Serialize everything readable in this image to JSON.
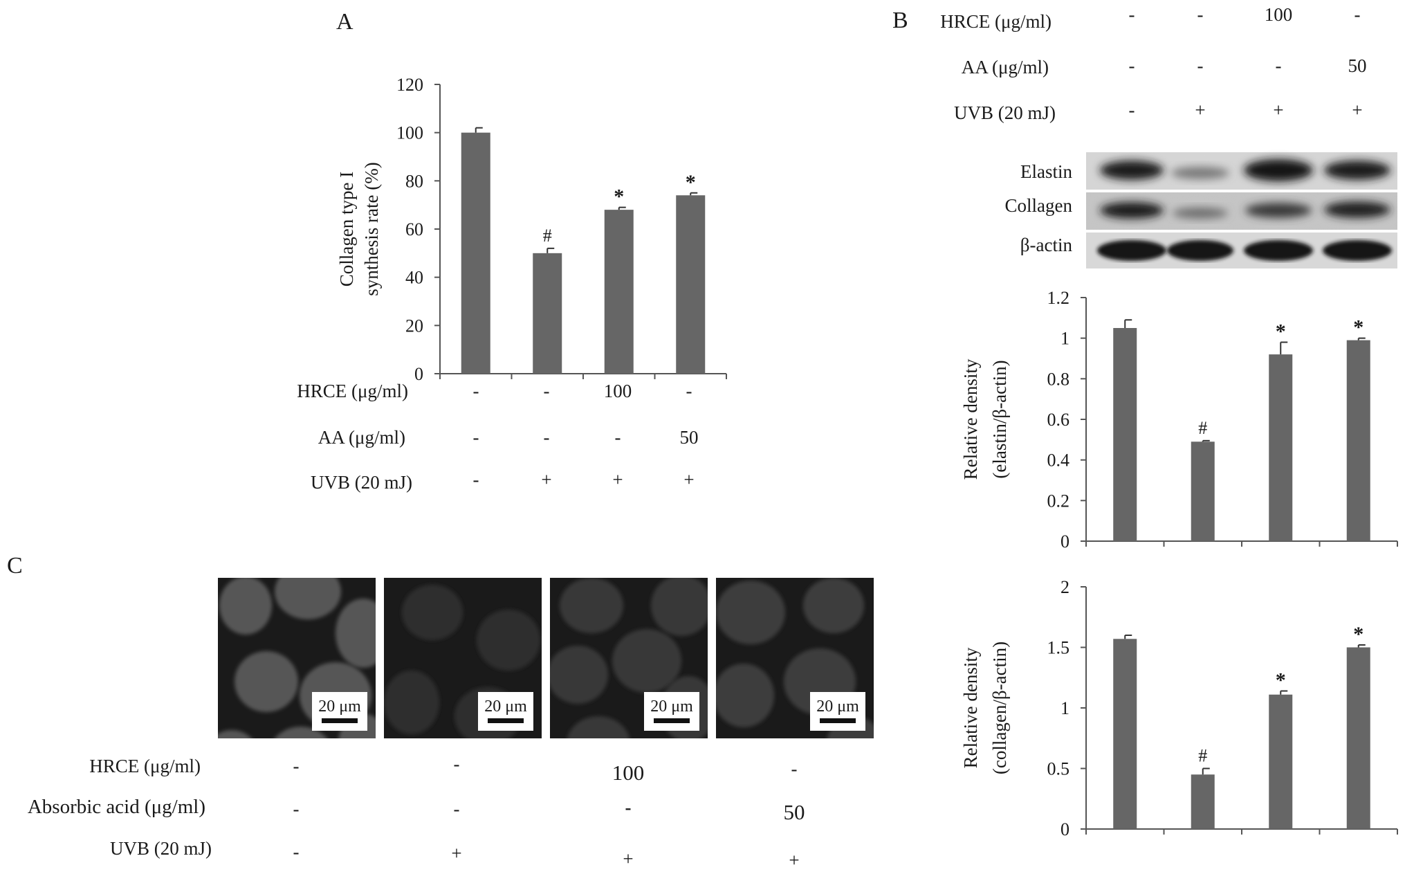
{
  "panels": {
    "A": "A",
    "B": "B",
    "C": "C"
  },
  "conditions": {
    "hrce_label": "HRCE (μg/ml)",
    "aa_label": "AA (μg/ml)",
    "uvb_label": "UVB (20 mJ)",
    "absorbic_label": "Absorbic acid (μg/ml)",
    "hrce": [
      "-",
      "-",
      "100",
      "-"
    ],
    "aa": [
      "-",
      "-",
      "-",
      "50"
    ],
    "uvb": [
      "-",
      "+",
      "+",
      "+"
    ]
  },
  "blot": {
    "bands": [
      "Elastin",
      "Collagen",
      "β-actin"
    ]
  },
  "micrographs": {
    "scale_bar": "20 μm",
    "count": 4
  },
  "chart_data": [
    {
      "id": "A",
      "type": "bar",
      "ylabel_line1": "Collagen type I",
      "ylabel_line2": "synthesis rate (%)",
      "ylim": [
        0,
        120
      ],
      "yticks": [
        "0",
        "20",
        "40",
        "60",
        "80",
        "100",
        "120"
      ],
      "values": [
        100,
        50,
        68,
        74
      ],
      "errors": [
        2,
        2,
        1,
        1
      ],
      "annotations": [
        "",
        "#",
        "*",
        "*"
      ],
      "bar_color": "#666666",
      "grid": false
    },
    {
      "id": "B-elastin",
      "type": "bar",
      "ylabel_line1": "Relative density",
      "ylabel_line2": "(elastin/β-actin)",
      "ylim": [
        0,
        1.2
      ],
      "yticks": [
        "0",
        "0.2",
        "0.4",
        "0.6",
        "0.8",
        "1",
        "1.2"
      ],
      "values": [
        1.05,
        0.49,
        0.92,
        0.99
      ],
      "errors": [
        0.04,
        0.005,
        0.06,
        0.01
      ],
      "annotations": [
        "",
        "#",
        "*",
        "*"
      ],
      "bar_color": "#666666",
      "grid": false
    },
    {
      "id": "B-collagen",
      "type": "bar",
      "ylabel_line1": "Relative density",
      "ylabel_line2": "(collagen/β-actin)",
      "ylim": [
        0,
        2
      ],
      "yticks": [
        "0",
        "0.5",
        "1",
        "1.5",
        "2"
      ],
      "values": [
        1.57,
        0.45,
        1.11,
        1.5
      ],
      "errors": [
        0.03,
        0.05,
        0.03,
        0.02
      ],
      "annotations": [
        "",
        "#",
        "*",
        "*"
      ],
      "bar_color": "#666666",
      "grid": false
    }
  ]
}
